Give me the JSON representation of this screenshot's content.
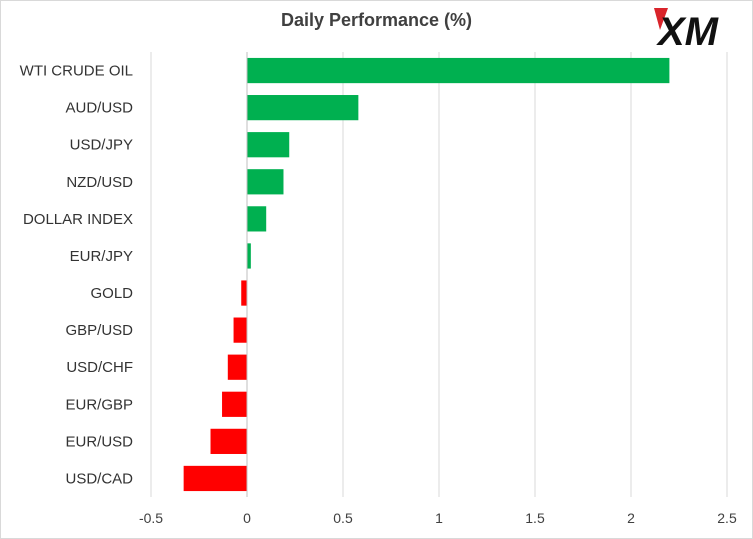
{
  "logo": {
    "text": "XM",
    "accent_color": "#d9242b",
    "text_color": "#111111"
  },
  "chart_data": {
    "type": "bar",
    "orientation": "horizontal",
    "title": "Daily Performance (%)",
    "xlabel": "",
    "ylabel": "",
    "categories": [
      "WTI CRUDE OIL",
      "AUD/USD",
      "USD/JPY",
      "NZD/USD",
      "DOLLAR INDEX",
      "EUR/JPY",
      "GOLD",
      "GBP/USD",
      "USD/CHF",
      "EUR/GBP",
      "EUR/USD",
      "USD/CAD"
    ],
    "values": [
      2.2,
      0.58,
      0.22,
      0.19,
      0.1,
      0.02,
      -0.03,
      -0.07,
      -0.1,
      -0.13,
      -0.19,
      -0.33
    ],
    "xlim": [
      -0.5,
      2.5
    ],
    "xticks": [
      -0.5,
      0,
      0.5,
      1,
      1.5,
      2,
      2.5
    ],
    "xtick_labels": [
      "-0.5",
      "0",
      "0.5",
      "1",
      "1.5",
      "2",
      "2.5"
    ],
    "grid": "vertical",
    "legend": "none",
    "colors": {
      "positive": "#00b050",
      "negative": "#ff0000",
      "grid": "#d9d9d9"
    }
  }
}
